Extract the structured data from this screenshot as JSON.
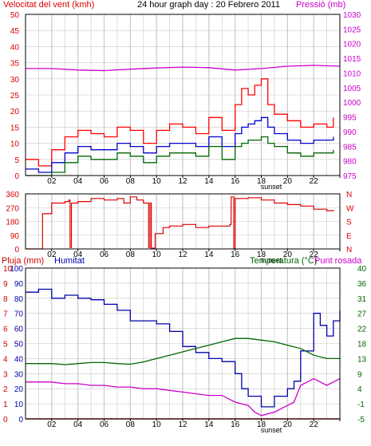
{
  "colors": {
    "wind": "#dd0000",
    "pressure": "#cc00cc",
    "gust": "#ff0000",
    "avg": "#0000cc",
    "min": "#006600",
    "humidity": "#0000aa",
    "temp": "#006600",
    "dew": "#cc00cc",
    "rain": "#cc0000",
    "grid": "#c8c8c8",
    "frame": "#000000"
  },
  "chart_data": [
    {
      "type": "line",
      "panel": "wind",
      "title": "24 hour graph day : 20 Febrero 2011",
      "ylabel_left": "Velocitat del vent (kmh)",
      "ylabel_right": "Pressió (mb)",
      "ylim": [
        0,
        50
      ],
      "yticks": [
        "0",
        "5",
        "10",
        "15",
        "20",
        "25",
        "30",
        "35",
        "40",
        "45",
        "50"
      ],
      "ylim_right": [
        975,
        1030
      ],
      "yticks_right": [
        "975",
        "980",
        "985",
        "990",
        "995",
        "1000",
        "1005",
        "1010",
        "1015",
        "1020",
        "1025",
        "1030"
      ],
      "xlim": [
        0,
        24
      ],
      "xticks": [
        "02",
        "04",
        "06",
        "08",
        "10",
        "12",
        "14",
        "16",
        "18",
        "20",
        "22",
        ""
      ],
      "annotation": "sunset",
      "series": [
        {
          "key": "gust",
          "x": [
            0,
            1,
            2,
            3,
            4,
            5,
            6,
            7,
            8,
            9,
            10,
            11,
            12,
            13,
            14,
            15,
            16,
            16.5,
            17,
            17.5,
            18,
            18.5,
            19,
            20,
            21,
            22,
            23,
            23.5
          ],
          "y": [
            5,
            3,
            8,
            12,
            14,
            13,
            12,
            15,
            14,
            10,
            14,
            16,
            15,
            13,
            18,
            14,
            22,
            27,
            25,
            28,
            30,
            22,
            19,
            17,
            15,
            16,
            15,
            18
          ]
        },
        {
          "key": "avg",
          "x": [
            0,
            1,
            2,
            3,
            4,
            5,
            6,
            7,
            8,
            9,
            10,
            11,
            12,
            13,
            14,
            15,
            16,
            16.5,
            17,
            17.5,
            18,
            18.5,
            19,
            20,
            21,
            22,
            23,
            23.5
          ],
          "y": [
            2,
            1,
            4,
            7,
            9,
            8,
            8,
            10,
            9,
            7,
            9,
            10,
            10,
            9,
            12,
            9,
            13,
            15,
            16,
            17,
            18,
            15,
            13,
            11,
            10,
            11,
            11,
            12
          ]
        },
        {
          "key": "min",
          "x": [
            0,
            1,
            2,
            3,
            4,
            5,
            6,
            7,
            8,
            9,
            10,
            11,
            12,
            13,
            14,
            15,
            16,
            16.5,
            17,
            17.5,
            18,
            18.5,
            19,
            20,
            21,
            22,
            23,
            23.5
          ],
          "y": [
            0,
            0,
            1,
            4,
            6,
            5,
            5,
            7,
            6,
            4,
            6,
            7,
            7,
            6,
            9,
            5,
            9,
            10,
            11,
            11,
            12,
            10,
            9,
            7,
            6,
            7,
            7,
            8
          ]
        },
        {
          "key": "pressure",
          "axis": "right",
          "x": [
            0,
            2,
            4,
            6,
            8,
            10,
            12,
            14,
            16,
            18,
            20,
            22,
            24
          ],
          "y": [
            1011.5,
            1011.5,
            1011,
            1010.8,
            1011.3,
            1011.7,
            1012,
            1011.8,
            1011,
            1011.5,
            1012.3,
            1012.6,
            1012.3
          ]
        }
      ]
    },
    {
      "type": "line",
      "panel": "direction",
      "yticks": [
        "0",
        "90",
        "180",
        "270",
        "360"
      ],
      "ylim": [
        0,
        360
      ],
      "right_labels": [
        "N",
        "W",
        "S",
        "E",
        "N"
      ],
      "xlim": [
        0,
        24
      ],
      "xticks": [
        "02",
        "04",
        "06",
        "08",
        "10",
        "12",
        "14",
        "16",
        "18",
        "20",
        "22",
        ""
      ],
      "annotation": "sunset",
      "series": [
        {
          "key": "direction",
          "x": [
            0,
            1.2,
            1.3,
            2,
            3,
            3.3,
            3.4,
            3.5,
            4,
            5,
            6,
            7,
            7.5,
            8,
            8.5,
            9,
            9.4,
            9.5,
            9.6,
            9.9,
            10.5,
            11,
            12,
            13,
            14,
            15,
            15.6,
            15.7,
            15.9,
            16,
            17,
            18,
            19,
            20,
            21,
            22,
            23,
            23.5
          ],
          "y": [
            0,
            0,
            230,
            300,
            310,
            320,
            10,
            300,
            310,
            330,
            320,
            330,
            300,
            340,
            320,
            300,
            10,
            300,
            5,
            100,
            140,
            150,
            160,
            140,
            150,
            150,
            160,
            340,
            5,
            330,
            335,
            320,
            300,
            290,
            280,
            260,
            250,
            255
          ]
        }
      ]
    },
    {
      "type": "line",
      "panel": "humidity-temperature",
      "ylabel_left": "Pluja (mm)",
      "ylabel_left2": "Humitat",
      "ylabel_right": "Temperatura (°C)",
      "ylabel_right2": "Punt rosada",
      "yticks_rain": [
        "0",
        "1",
        "2",
        "3",
        "4",
        "5",
        "6",
        "7",
        "8",
        "9",
        "10"
      ],
      "yticks_humidity": [
        "0",
        "10",
        "20",
        "30",
        "40",
        "50",
        "60",
        "70",
        "80",
        "90",
        "100"
      ],
      "ylim_humidity": [
        0,
        100
      ],
      "yticks_temp": [
        "-5",
        "-1",
        "4",
        "9",
        "13",
        "18",
        "22",
        "27",
        "31",
        "36",
        "40"
      ],
      "ylim_temp": [
        -5,
        40
      ],
      "xlim": [
        0,
        24
      ],
      "xticks": [
        "02",
        "04",
        "06",
        "08",
        "10",
        "12",
        "14",
        "16",
        "18",
        "20",
        "22",
        ""
      ],
      "annotation": "sunset",
      "series": [
        {
          "key": "humidity",
          "x": [
            0,
            1,
            2,
            3,
            4,
            5,
            6,
            7,
            8,
            9,
            10,
            11,
            12,
            13,
            14,
            15,
            16,
            16.5,
            17,
            18,
            19,
            20,
            20.5,
            21,
            22,
            22.5,
            23,
            23.5,
            24
          ],
          "y": [
            84,
            86,
            80,
            82,
            80,
            79,
            76,
            72,
            65,
            65,
            63,
            58,
            48,
            44,
            40,
            38,
            30,
            20,
            15,
            8,
            15,
            20,
            25,
            45,
            70,
            62,
            55,
            65,
            72
          ]
        },
        {
          "key": "temp",
          "x": [
            0,
            1,
            2,
            3,
            4,
            5,
            6,
            7,
            8,
            9,
            10,
            11,
            12,
            13,
            14,
            15,
            16,
            17,
            18,
            19,
            20,
            21,
            22,
            23,
            24
          ],
          "y": [
            11.5,
            11.5,
            11.5,
            11.2,
            11.5,
            11.8,
            11.8,
            11.5,
            11.3,
            12,
            13,
            14,
            15,
            16,
            17,
            18,
            19,
            19,
            18.5,
            18,
            17,
            16,
            14,
            13,
            13
          ]
        },
        {
          "key": "dew",
          "x": [
            0,
            1,
            2,
            3,
            4,
            5,
            6,
            7,
            8,
            9,
            10,
            11,
            12,
            13,
            14,
            15,
            15.5,
            16,
            17,
            17.5,
            18,
            19,
            20,
            20.5,
            21,
            22,
            23,
            24
          ],
          "y": [
            6,
            6,
            6,
            5.5,
            5.5,
            5,
            5,
            4.5,
            4.5,
            4,
            4,
            3.5,
            3,
            2.5,
            2,
            2,
            1,
            0,
            -1,
            -3,
            -4,
            -3,
            -1,
            0,
            5,
            7,
            5,
            7
          ]
        },
        {
          "key": "rain",
          "x": [
            0,
            24
          ],
          "y": [
            0,
            0
          ]
        }
      ]
    }
  ]
}
